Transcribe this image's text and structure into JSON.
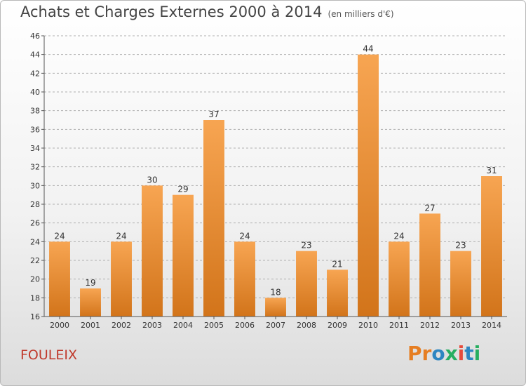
{
  "header": {
    "title": "Achats et Charges Externes 2000 à 2014",
    "subtitle": "(en milliers d'€)"
  },
  "commune": "FOULEIX",
  "logo": {
    "text": "Proxiti",
    "letters": [
      "P",
      "r",
      "o",
      "x",
      "i",
      "t",
      "i"
    ],
    "colors": [
      "#e67e22",
      "#e67e22",
      "#2e86c1",
      "#27ae60",
      "#e74c3c",
      "#2e86c1",
      "#27ae60"
    ]
  },
  "colors": {
    "bar_light": "#f7a552",
    "bar_dark": "#d2741a",
    "grid": "#b0b0b0"
  },
  "chart_data": {
    "type": "bar",
    "title": "Achats et Charges Externes 2000 à 2014",
    "subtitle": "(en milliers d'€)",
    "categories": [
      "2000",
      "2001",
      "2002",
      "2003",
      "2004",
      "2005",
      "2006",
      "2007",
      "2008",
      "2009",
      "2010",
      "2011",
      "2012",
      "2013",
      "2014"
    ],
    "values": [
      24,
      19,
      24,
      30,
      29,
      37,
      24,
      18,
      23,
      21,
      44,
      24,
      27,
      23,
      31
    ],
    "ylim": [
      16,
      46
    ],
    "yticks": [
      16,
      18,
      20,
      22,
      24,
      26,
      28,
      30,
      32,
      34,
      36,
      38,
      40,
      42,
      44,
      46
    ],
    "grid": true,
    "xlabel": "",
    "ylabel": ""
  }
}
